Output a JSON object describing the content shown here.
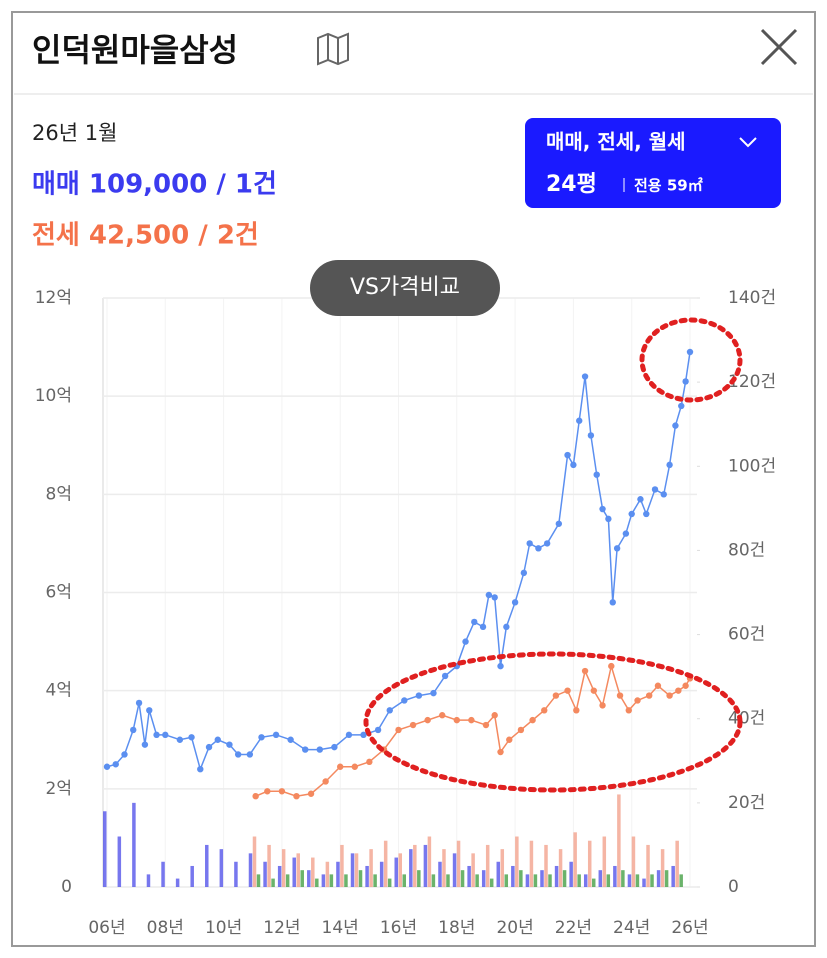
{
  "header": {
    "title": "인덕원마을삼성"
  },
  "summary": {
    "date": "26년 1월",
    "sale": "매매 109,000 / 1건",
    "jeonse": "전세 42,500 / 2건"
  },
  "filter": {
    "types": "매매, 전세, 월세",
    "size": "24평",
    "area": "전용 59㎡"
  },
  "compare_button": "VS가격비교",
  "chart_data": {
    "type": "line",
    "xlim": [
      2006,
      2026
    ],
    "xticks": [
      {
        "value": 2006,
        "label": "06년"
      },
      {
        "value": 2008,
        "label": "08년"
      },
      {
        "value": 2010,
        "label": "10년"
      },
      {
        "value": 2012,
        "label": "12년"
      },
      {
        "value": 2014,
        "label": "14년"
      },
      {
        "value": 2016,
        "label": "16년"
      },
      {
        "value": 2018,
        "label": "18년"
      },
      {
        "value": 2020,
        "label": "20년"
      },
      {
        "value": 2022,
        "label": "22년"
      },
      {
        "value": 2024,
        "label": "24년"
      },
      {
        "value": 2026,
        "label": "26년"
      }
    ],
    "ylim": [
      0,
      12
    ],
    "yticks": [
      0,
      {
        "value": 2,
        "label": "2억"
      },
      {
        "value": 4,
        "label": "4억"
      },
      {
        "value": 6,
        "label": "6억"
      },
      {
        "value": 8,
        "label": "8억"
      },
      {
        "value": 10,
        "label": "10억"
      },
      {
        "value": 12,
        "label": "12억"
      }
    ],
    "y2lim": [
      0,
      140
    ],
    "y2ticks": [
      0,
      {
        "value": 20,
        "label": "20건"
      },
      {
        "value": 40,
        "label": "40건"
      },
      {
        "value": 60,
        "label": "60건"
      },
      {
        "value": 80,
        "label": "80건"
      },
      {
        "value": 100,
        "label": "100건"
      },
      {
        "value": 120,
        "label": "120건"
      },
      {
        "value": 140,
        "label": "140건"
      }
    ],
    "grid": true,
    "series": [
      {
        "type": "line",
        "color": "#5b8ff0",
        "x": [
          2006.0,
          2006.3,
          2006.6,
          2006.9,
          2007.1,
          2007.3,
          2007.45,
          2007.7,
          2008.0,
          2008.5,
          2008.9,
          2009.2,
          2009.5,
          2009.8,
          2010.2,
          2010.5,
          2010.9,
          2011.3,
          2011.8,
          2012.3,
          2012.8,
          2013.3,
          2013.8,
          2014.3,
          2014.8,
          2015.3,
          2015.7,
          2016.2,
          2016.7,
          2017.2,
          2017.6,
          2018.0,
          2018.3,
          2018.6,
          2018.9,
          2019.1,
          2019.3,
          2019.5,
          2019.7,
          2020.0,
          2020.3,
          2020.5,
          2020.8,
          2021.1,
          2021.5,
          2021.8,
          2022.0,
          2022.2,
          2022.4,
          2022.6,
          2022.8,
          2023.0,
          2023.2,
          2023.35,
          2023.5,
          2023.8,
          2024.0,
          2024.3,
          2024.5,
          2024.8,
          2025.1,
          2025.3,
          2025.5,
          2025.7,
          2025.85,
          2026.0
        ],
        "values": [
          2.45,
          2.5,
          2.7,
          3.2,
          3.75,
          2.9,
          3.6,
          3.1,
          3.1,
          3.0,
          3.05,
          2.4,
          2.85,
          3.0,
          2.9,
          2.7,
          2.7,
          3.05,
          3.1,
          3.0,
          2.8,
          2.8,
          2.85,
          3.1,
          3.1,
          3.2,
          3.6,
          3.8,
          3.9,
          3.95,
          4.3,
          4.5,
          5.0,
          5.4,
          5.3,
          5.95,
          5.9,
          4.5,
          5.3,
          5.8,
          6.4,
          7.0,
          6.9,
          7.0,
          7.4,
          8.8,
          8.6,
          9.5,
          10.4,
          9.2,
          8.4,
          7.7,
          7.5,
          5.8,
          6.9,
          7.2,
          7.6,
          7.9,
          7.6,
          8.1,
          8.0,
          8.6,
          9.4,
          9.8,
          10.3,
          10.9
        ]
      },
      {
        "type": "line",
        "color": "#f4895f",
        "x": [
          2011.1,
          2011.5,
          2012.0,
          2012.5,
          2013.0,
          2013.5,
          2014.0,
          2014.5,
          2015.0,
          2015.5,
          2016.0,
          2016.5,
          2017.0,
          2017.5,
          2018.0,
          2018.5,
          2019.0,
          2019.3,
          2019.5,
          2019.8,
          2020.2,
          2020.6,
          2021.0,
          2021.4,
          2021.8,
          2022.1,
          2022.4,
          2022.7,
          2023.0,
          2023.3,
          2023.6,
          2023.9,
          2024.2,
          2024.6,
          2024.9,
          2025.3,
          2025.6,
          2025.85,
          2026.0
        ],
        "values": [
          1.85,
          1.95,
          1.95,
          1.85,
          1.9,
          2.15,
          2.45,
          2.45,
          2.55,
          2.8,
          3.2,
          3.3,
          3.4,
          3.5,
          3.4,
          3.4,
          3.3,
          3.5,
          2.75,
          3.0,
          3.2,
          3.4,
          3.6,
          3.9,
          4.0,
          3.6,
          4.4,
          4.0,
          3.7,
          4.5,
          3.9,
          3.6,
          3.8,
          3.9,
          4.1,
          3.9,
          4.0,
          4.1,
          4.25
        ]
      },
      {
        "type": "bar",
        "axis": "y2",
        "color": "#4a4ae8",
        "x": [
          2006.0,
          2006.5,
          2007.0,
          2007.5,
          2008.0,
          2008.5,
          2009.0,
          2009.5,
          2010.0,
          2010.5,
          2011.0,
          2011.5,
          2012.0,
          2012.5,
          2013.0,
          2013.5,
          2014.0,
          2014.5,
          2015.0,
          2015.5,
          2016.0,
          2016.5,
          2017.0,
          2017.5,
          2018.0,
          2018.5,
          2019.0,
          2019.5,
          2020.0,
          2020.5,
          2021.0,
          2021.5,
          2022.0,
          2022.5,
          2023.0,
          2023.5,
          2024.0,
          2024.5,
          2025.0,
          2025.5
        ],
        "values": [
          18,
          12,
          20,
          3,
          6,
          2,
          5,
          10,
          9,
          6,
          8,
          6,
          5,
          7,
          4,
          3,
          6,
          8,
          5,
          6,
          7,
          9,
          10,
          6,
          8,
          5,
          4,
          6,
          5,
          3,
          4,
          5,
          6,
          3,
          4,
          5,
          3,
          2,
          4,
          5
        ]
      },
      {
        "type": "bar",
        "axis": "y2",
        "color": "#f29c86",
        "x": [
          2011.0,
          2011.5,
          2012.0,
          2012.5,
          2013.0,
          2013.5,
          2014.0,
          2014.5,
          2015.0,
          2015.5,
          2016.0,
          2016.5,
          2017.0,
          2017.5,
          2018.0,
          2018.5,
          2019.0,
          2019.5,
          2020.0,
          2020.5,
          2021.0,
          2021.5,
          2022.0,
          2022.5,
          2023.0,
          2023.5,
          2024.0,
          2024.5,
          2025.0,
          2025.5
        ],
        "values": [
          12,
          10,
          9,
          8,
          7,
          6,
          10,
          8,
          9,
          11,
          8,
          10,
          12,
          9,
          11,
          8,
          10,
          9,
          12,
          11,
          10,
          9,
          13,
          11,
          12,
          22,
          12,
          10,
          9,
          11
        ]
      },
      {
        "type": "bar",
        "axis": "y2",
        "color": "#3a9a3a",
        "x": [
          2011.0,
          2011.5,
          2012.0,
          2012.5,
          2013.0,
          2013.5,
          2014.0,
          2014.5,
          2015.0,
          2015.5,
          2016.0,
          2016.5,
          2017.0,
          2017.5,
          2018.0,
          2018.5,
          2019.0,
          2019.5,
          2020.0,
          2020.5,
          2021.0,
          2021.5,
          2022.0,
          2022.5,
          2023.0,
          2023.5,
          2024.0,
          2024.5,
          2025.0,
          2025.5
        ],
        "values": [
          3,
          2,
          3,
          4,
          2,
          3,
          3,
          4,
          3,
          2,
          3,
          4,
          3,
          3,
          4,
          3,
          2,
          3,
          4,
          3,
          3,
          4,
          3,
          2,
          3,
          4,
          3,
          3,
          4,
          3
        ]
      }
    ]
  }
}
